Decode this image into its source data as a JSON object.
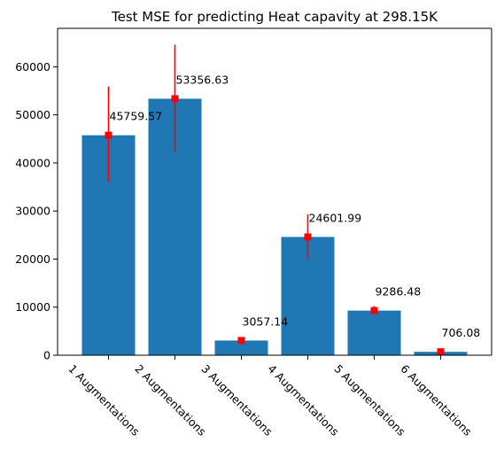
{
  "chart_data": {
    "type": "bar",
    "title": "Test MSE for predicting Heat capavity at 298.15K",
    "xlabel": "",
    "ylabel": "",
    "categories": [
      "1 Augmentations",
      "2 Augmentations",
      "3 Augmentations",
      "4 Augmentations",
      "5 Augmentations",
      "6 Augmentations"
    ],
    "values": [
      45759.57,
      53356.63,
      3057.14,
      24601.99,
      9286.48,
      706.08
    ],
    "value_labels": [
      "45759.57",
      "53356.63",
      "3057.14",
      "24601.99",
      "9286.48",
      "706.08"
    ],
    "error_low": [
      36000,
      42300,
      2600,
      20000,
      8600,
      500
    ],
    "error_high": [
      55900,
      64600,
      3500,
      29300,
      10200,
      900
    ],
    "ylim": [
      0,
      68000
    ],
    "yticks": [
      0,
      10000,
      20000,
      30000,
      40000,
      50000,
      60000
    ],
    "ytick_labels": [
      "0",
      "10000",
      "20000",
      "30000",
      "40000",
      "50000",
      "60000"
    ],
    "grid": false,
    "bar_color": "#1f77b4",
    "error_color": "#ff0000",
    "marker_color": "#ff0000"
  }
}
